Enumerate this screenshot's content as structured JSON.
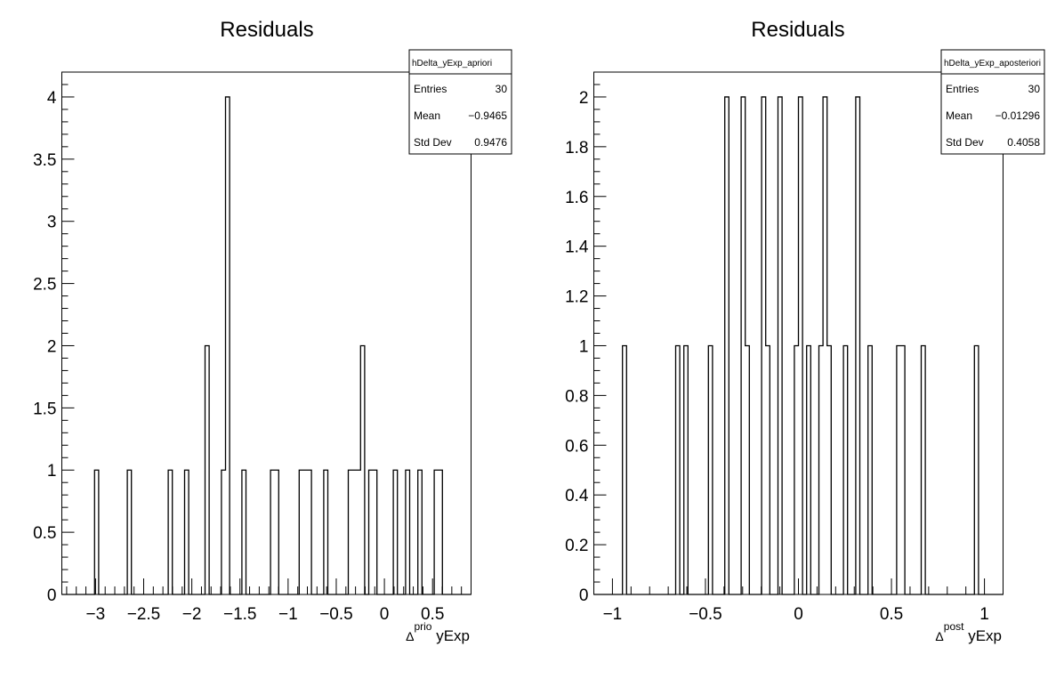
{
  "chart_data": [
    {
      "type": "bar",
      "histogram": "step",
      "title": "Residuals",
      "xlabel": {
        "symbol": "Δ",
        "superscript": "prio",
        "text": "yExp"
      },
      "ylabel": "",
      "xlim": [
        -3.35,
        0.9
      ],
      "ylim": [
        0,
        4.2
      ],
      "nbins": 100,
      "x_ticks": [
        -3,
        -2.5,
        -2,
        -1.5,
        -1,
        -0.5,
        0,
        0.5
      ],
      "x_tick_labels": [
        "−3",
        "−2.5",
        "−2",
        "−1.5",
        "−1",
        "−0.5",
        "0",
        "0.5"
      ],
      "y_ticks": [
        0,
        0.5,
        1,
        1.5,
        2,
        2.5,
        3,
        3.5,
        4
      ],
      "y_tick_labels": [
        "0",
        "0.5",
        "1",
        "1.5",
        "2",
        "2.5",
        "3",
        "3.5",
        "4"
      ],
      "x_minor_step": 0.1,
      "y_minor_step": 0.1,
      "bins": {
        "8": 1,
        "16": 1,
        "26": 1,
        "30": 1,
        "35": 2,
        "39": 1,
        "40": 4,
        "44": 1,
        "51": 1,
        "52": 1,
        "58": 1,
        "59": 1,
        "60": 1,
        "64": 1,
        "70": 1,
        "71": 1,
        "72": 1,
        "73": 2,
        "75": 1,
        "76": 1,
        "81": 1,
        "84": 1,
        "87": 1,
        "91": 1,
        "92": 1
      },
      "stats": {
        "name": "hDelta_yExp_apriori",
        "rows": [
          {
            "label": "Entries",
            "value": "30"
          },
          {
            "label": "Mean",
            "value": "−0.9465"
          },
          {
            "label": "Std Dev",
            "value": "0.9476"
          }
        ]
      },
      "grid": false,
      "legend": "top-right"
    },
    {
      "type": "bar",
      "histogram": "step",
      "title": "Residuals",
      "xlabel": {
        "symbol": "Δ",
        "superscript": "post",
        "text": "yExp"
      },
      "ylabel": "",
      "xlim": [
        -1.1,
        1.1
      ],
      "ylim": [
        0,
        2.1
      ],
      "nbins": 100,
      "x_ticks": [
        -1,
        -0.5,
        0,
        0.5,
        1
      ],
      "x_tick_labels": [
        "−1",
        "−0.5",
        "0",
        "0.5",
        "1"
      ],
      "y_ticks": [
        0,
        0.2,
        0.4,
        0.6,
        0.8,
        1,
        1.2,
        1.4,
        1.6,
        1.8,
        2
      ],
      "y_tick_labels": [
        "0",
        "0.2",
        "0.4",
        "0.6",
        "0.8",
        "1",
        "1.2",
        "1.4",
        "1.6",
        "1.8",
        "2"
      ],
      "x_minor_step": 0.1,
      "y_minor_step": 0.05,
      "bins": {
        "7": 1,
        "20": 1,
        "22": 1,
        "28": 1,
        "32": 2,
        "36": 2,
        "37": 1,
        "41": 2,
        "42": 1,
        "45": 2,
        "49": 1,
        "50": 2,
        "52": 1,
        "55": 1,
        "56": 2,
        "57": 1,
        "61": 1,
        "64": 2,
        "67": 1,
        "74": 1,
        "75": 1,
        "80": 1,
        "93": 1
      },
      "stats": {
        "name": "hDelta_yExp_aposteriori",
        "rows": [
          {
            "label": "Entries",
            "value": "30"
          },
          {
            "label": "Mean",
            "value": "−0.01296"
          },
          {
            "label": "Std Dev",
            "value": "0.4058"
          }
        ]
      },
      "grid": false,
      "legend": "top-right"
    }
  ]
}
